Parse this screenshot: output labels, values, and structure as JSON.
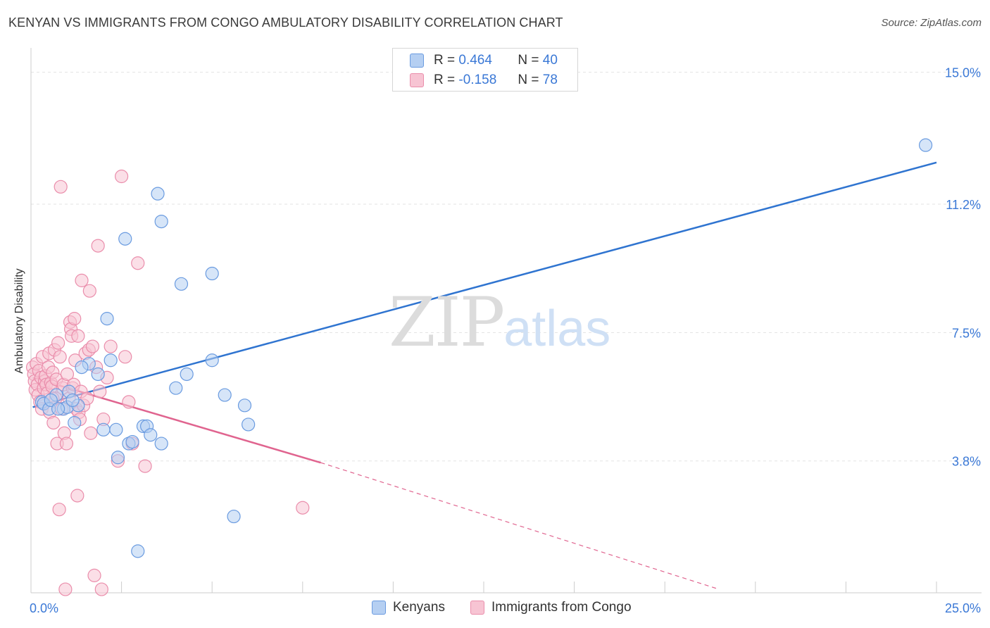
{
  "title": "KENYAN VS IMMIGRANTS FROM CONGO AMBULATORY DISABILITY CORRELATION CHART",
  "source": "Source: ZipAtlas.com",
  "watermark": {
    "zip": "ZIP",
    "atlas": "atlas"
  },
  "legend_top": [
    {
      "r_label": "R =",
      "r_value": "0.464",
      "n_label": "N =",
      "n_value": "40"
    },
    {
      "r_label": "R =",
      "r_value": "-0.158",
      "n_label": "N =",
      "n_value": "78"
    }
  ],
  "legend_bottom": [
    "Kenyans",
    "Immigrants from Congo"
  ],
  "colors": {
    "blue_fill": "#b5cff2",
    "blue_stroke": "#6a9be0",
    "blue_line": "#2f74d0",
    "pink_fill": "#f7c4d3",
    "pink_stroke": "#ea8dab",
    "pink_line": "#e0648f",
    "axis_text": "#3a78d6",
    "grid": "#e3e3e3"
  },
  "chart_data": {
    "type": "scatter",
    "title": "KENYAN VS IMMIGRANTS FROM CONGO AMBULATORY DISABILITY CORRELATION CHART",
    "xlabel": "",
    "ylabel": "Ambulatory Disability",
    "xlim": [
      0,
      25
    ],
    "ylim": [
      0,
      15.5
    ],
    "x_tick_labels": [
      "0.0%",
      "25.0%"
    ],
    "y_ticks": [
      3.8,
      7.5,
      11.2,
      15.0
    ],
    "y_tick_labels": [
      "3.8%",
      "7.5%",
      "11.2%",
      "15.0%"
    ],
    "series": [
      {
        "name": "Kenyans",
        "color": "blue",
        "R": 0.464,
        "N": 40,
        "trend": {
          "x0": 0.05,
          "y0": 5.35,
          "x1": 25.0,
          "y1": 12.4,
          "dashed_to": null
        },
        "points": [
          [
            0.3,
            5.5
          ],
          [
            0.35,
            5.45
          ],
          [
            0.5,
            5.3
          ],
          [
            0.7,
            5.7
          ],
          [
            0.9,
            5.3
          ],
          [
            1.0,
            5.35
          ],
          [
            1.05,
            5.8
          ],
          [
            1.2,
            4.9
          ],
          [
            1.3,
            5.4
          ],
          [
            1.6,
            6.6
          ],
          [
            1.85,
            6.3
          ],
          [
            2.0,
            4.7
          ],
          [
            2.1,
            7.9
          ],
          [
            2.2,
            6.7
          ],
          [
            2.35,
            4.7
          ],
          [
            2.4,
            3.9
          ],
          [
            2.6,
            10.2
          ],
          [
            2.7,
            4.3
          ],
          [
            2.8,
            4.35
          ],
          [
            2.95,
            1.2
          ],
          [
            3.1,
            4.8
          ],
          [
            3.2,
            4.8
          ],
          [
            3.3,
            4.55
          ],
          [
            3.5,
            11.5
          ],
          [
            3.6,
            4.3
          ],
          [
            3.6,
            10.7
          ],
          [
            4.0,
            5.9
          ],
          [
            4.15,
            8.9
          ],
          [
            4.3,
            6.3
          ],
          [
            5.0,
            9.2
          ],
          [
            5.0,
            6.7
          ],
          [
            5.35,
            5.7
          ],
          [
            5.6,
            2.2
          ],
          [
            5.9,
            5.4
          ],
          [
            6.0,
            4.85
          ],
          [
            24.7,
            12.9
          ],
          [
            0.55,
            5.55
          ],
          [
            0.75,
            5.3
          ],
          [
            1.4,
            6.5
          ],
          [
            1.15,
            5.55
          ]
        ]
      },
      {
        "name": "Immigrants from Congo",
        "color": "pink",
        "R": -0.158,
        "N": 78,
        "trend": {
          "x0": 0.05,
          "y0": 6.2,
          "x1": 8.0,
          "y1": 3.75,
          "dashed_to": [
            19.0,
            0.1
          ]
        },
        "points": [
          [
            0.05,
            6.5
          ],
          [
            0.08,
            6.3
          ],
          [
            0.1,
            6.1
          ],
          [
            0.12,
            5.85
          ],
          [
            0.15,
            6.6
          ],
          [
            0.18,
            6.0
          ],
          [
            0.2,
            5.7
          ],
          [
            0.22,
            6.4
          ],
          [
            0.25,
            5.5
          ],
          [
            0.28,
            6.2
          ],
          [
            0.3,
            5.3
          ],
          [
            0.32,
            6.8
          ],
          [
            0.35,
            5.9
          ],
          [
            0.38,
            6.1
          ],
          [
            0.4,
            6.25
          ],
          [
            0.42,
            6.0
          ],
          [
            0.45,
            5.75
          ],
          [
            0.48,
            6.5
          ],
          [
            0.5,
            6.9
          ],
          [
            0.52,
            5.2
          ],
          [
            0.55,
            6.05
          ],
          [
            0.58,
            5.95
          ],
          [
            0.6,
            6.35
          ],
          [
            0.62,
            4.9
          ],
          [
            0.65,
            7.0
          ],
          [
            0.68,
            5.6
          ],
          [
            0.7,
            6.15
          ],
          [
            0.72,
            4.3
          ],
          [
            0.75,
            7.2
          ],
          [
            0.78,
            2.4
          ],
          [
            0.8,
            6.8
          ],
          [
            0.82,
            11.7
          ],
          [
            0.85,
            5.3
          ],
          [
            0.88,
            5.9
          ],
          [
            0.9,
            6.0
          ],
          [
            0.92,
            4.6
          ],
          [
            0.95,
            0.1
          ],
          [
            0.98,
            4.3
          ],
          [
            1.0,
            6.3
          ],
          [
            1.05,
            5.6
          ],
          [
            1.08,
            7.8
          ],
          [
            1.1,
            7.6
          ],
          [
            1.12,
            7.4
          ],
          [
            1.15,
            5.9
          ],
          [
            1.18,
            6.0
          ],
          [
            1.2,
            7.9
          ],
          [
            1.22,
            6.7
          ],
          [
            1.25,
            5.3
          ],
          [
            1.28,
            2.8
          ],
          [
            1.3,
            7.4
          ],
          [
            1.32,
            5.2
          ],
          [
            1.35,
            5.0
          ],
          [
            1.38,
            5.8
          ],
          [
            1.4,
            9.0
          ],
          [
            1.45,
            5.4
          ],
          [
            1.5,
            6.9
          ],
          [
            1.55,
            5.6
          ],
          [
            1.6,
            7.0
          ],
          [
            1.62,
            8.7
          ],
          [
            1.65,
            4.6
          ],
          [
            1.7,
            7.1
          ],
          [
            1.75,
            0.5
          ],
          [
            1.8,
            6.5
          ],
          [
            1.85,
            10.0
          ],
          [
            1.9,
            5.8
          ],
          [
            1.95,
            0.1
          ],
          [
            2.0,
            5.0
          ],
          [
            2.1,
            6.2
          ],
          [
            2.2,
            7.1
          ],
          [
            2.4,
            3.8
          ],
          [
            2.5,
            12.0
          ],
          [
            2.6,
            6.8
          ],
          [
            2.7,
            5.5
          ],
          [
            2.8,
            4.3
          ],
          [
            2.95,
            9.5
          ],
          [
            3.15,
            3.65
          ],
          [
            7.5,
            2.45
          ],
          [
            0.6,
            5.6
          ]
        ]
      }
    ]
  }
}
